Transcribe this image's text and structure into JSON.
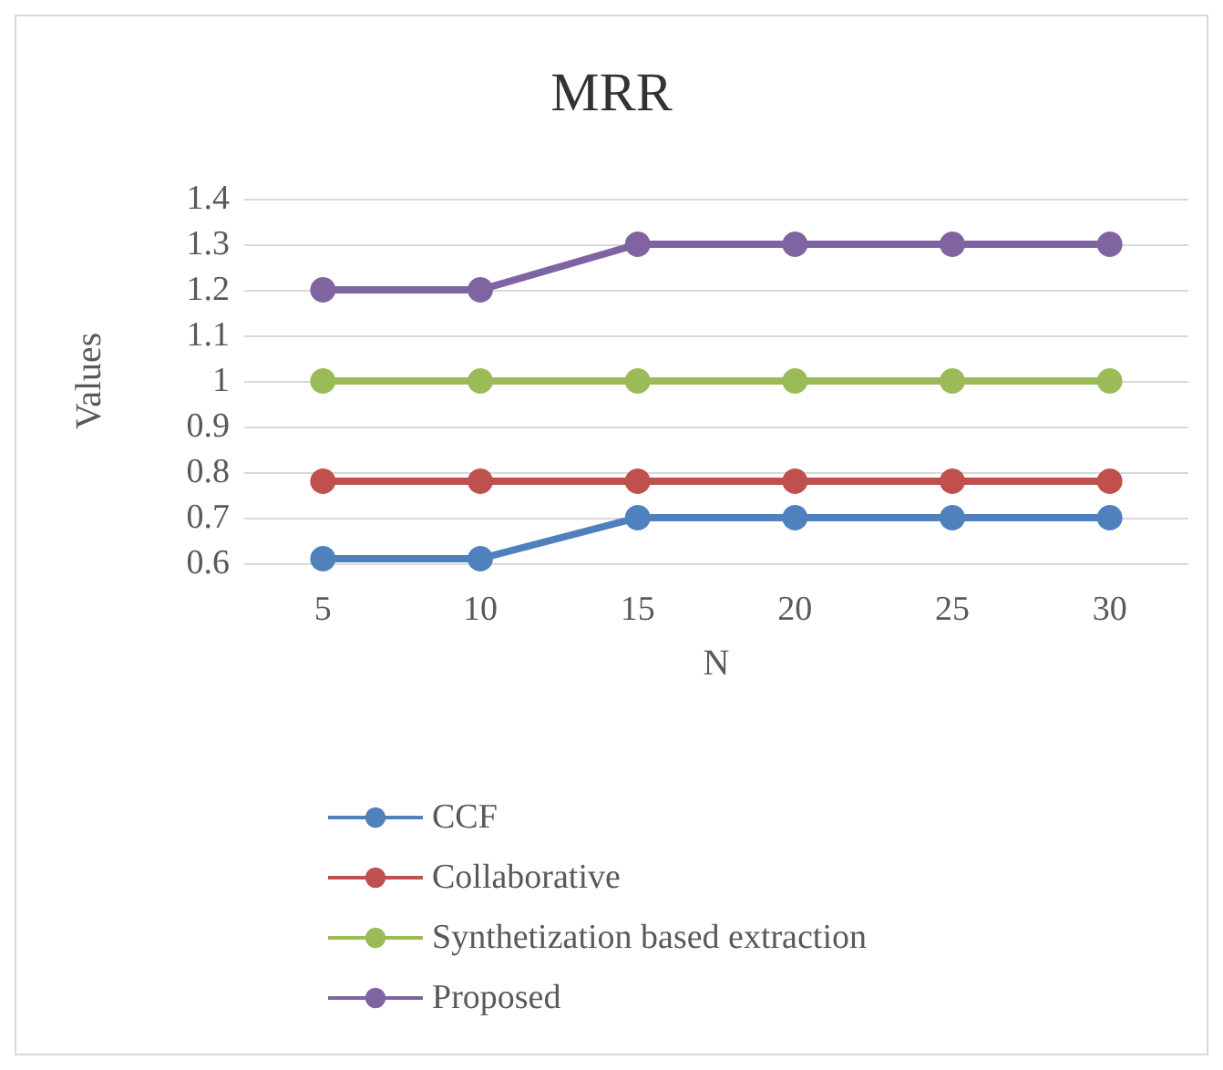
{
  "chart_data": {
    "type": "line",
    "title": "MRR",
    "xlabel": "N",
    "ylabel": "Values",
    "categories": [
      "5",
      "10",
      "15",
      "20",
      "25",
      "30"
    ],
    "series": [
      {
        "name": "CCF",
        "color": "#4f81bd",
        "values": [
          0.61,
          0.61,
          0.7,
          0.7,
          0.7,
          0.7
        ]
      },
      {
        "name": "Collaborative",
        "color": "#c0504d",
        "values": [
          0.78,
          0.78,
          0.78,
          0.78,
          0.78,
          0.78
        ]
      },
      {
        "name": "Synthetization based extraction",
        "color": "#9bbb59",
        "values": [
          1.0,
          1.0,
          1.0,
          1.0,
          1.0,
          1.0
        ]
      },
      {
        "name": "Proposed",
        "color": "#8064a2",
        "values": [
          1.2,
          1.2,
          1.3,
          1.3,
          1.3,
          1.3
        ]
      }
    ],
    "ylim": [
      0.6,
      1.4
    ],
    "yticks": [
      0.6,
      0.7,
      0.8,
      0.9,
      1,
      1.1,
      1.2,
      1.3,
      1.4
    ],
    "grid": "y",
    "legend": "bottom",
    "marker": "circle",
    "line_style": "solid"
  }
}
